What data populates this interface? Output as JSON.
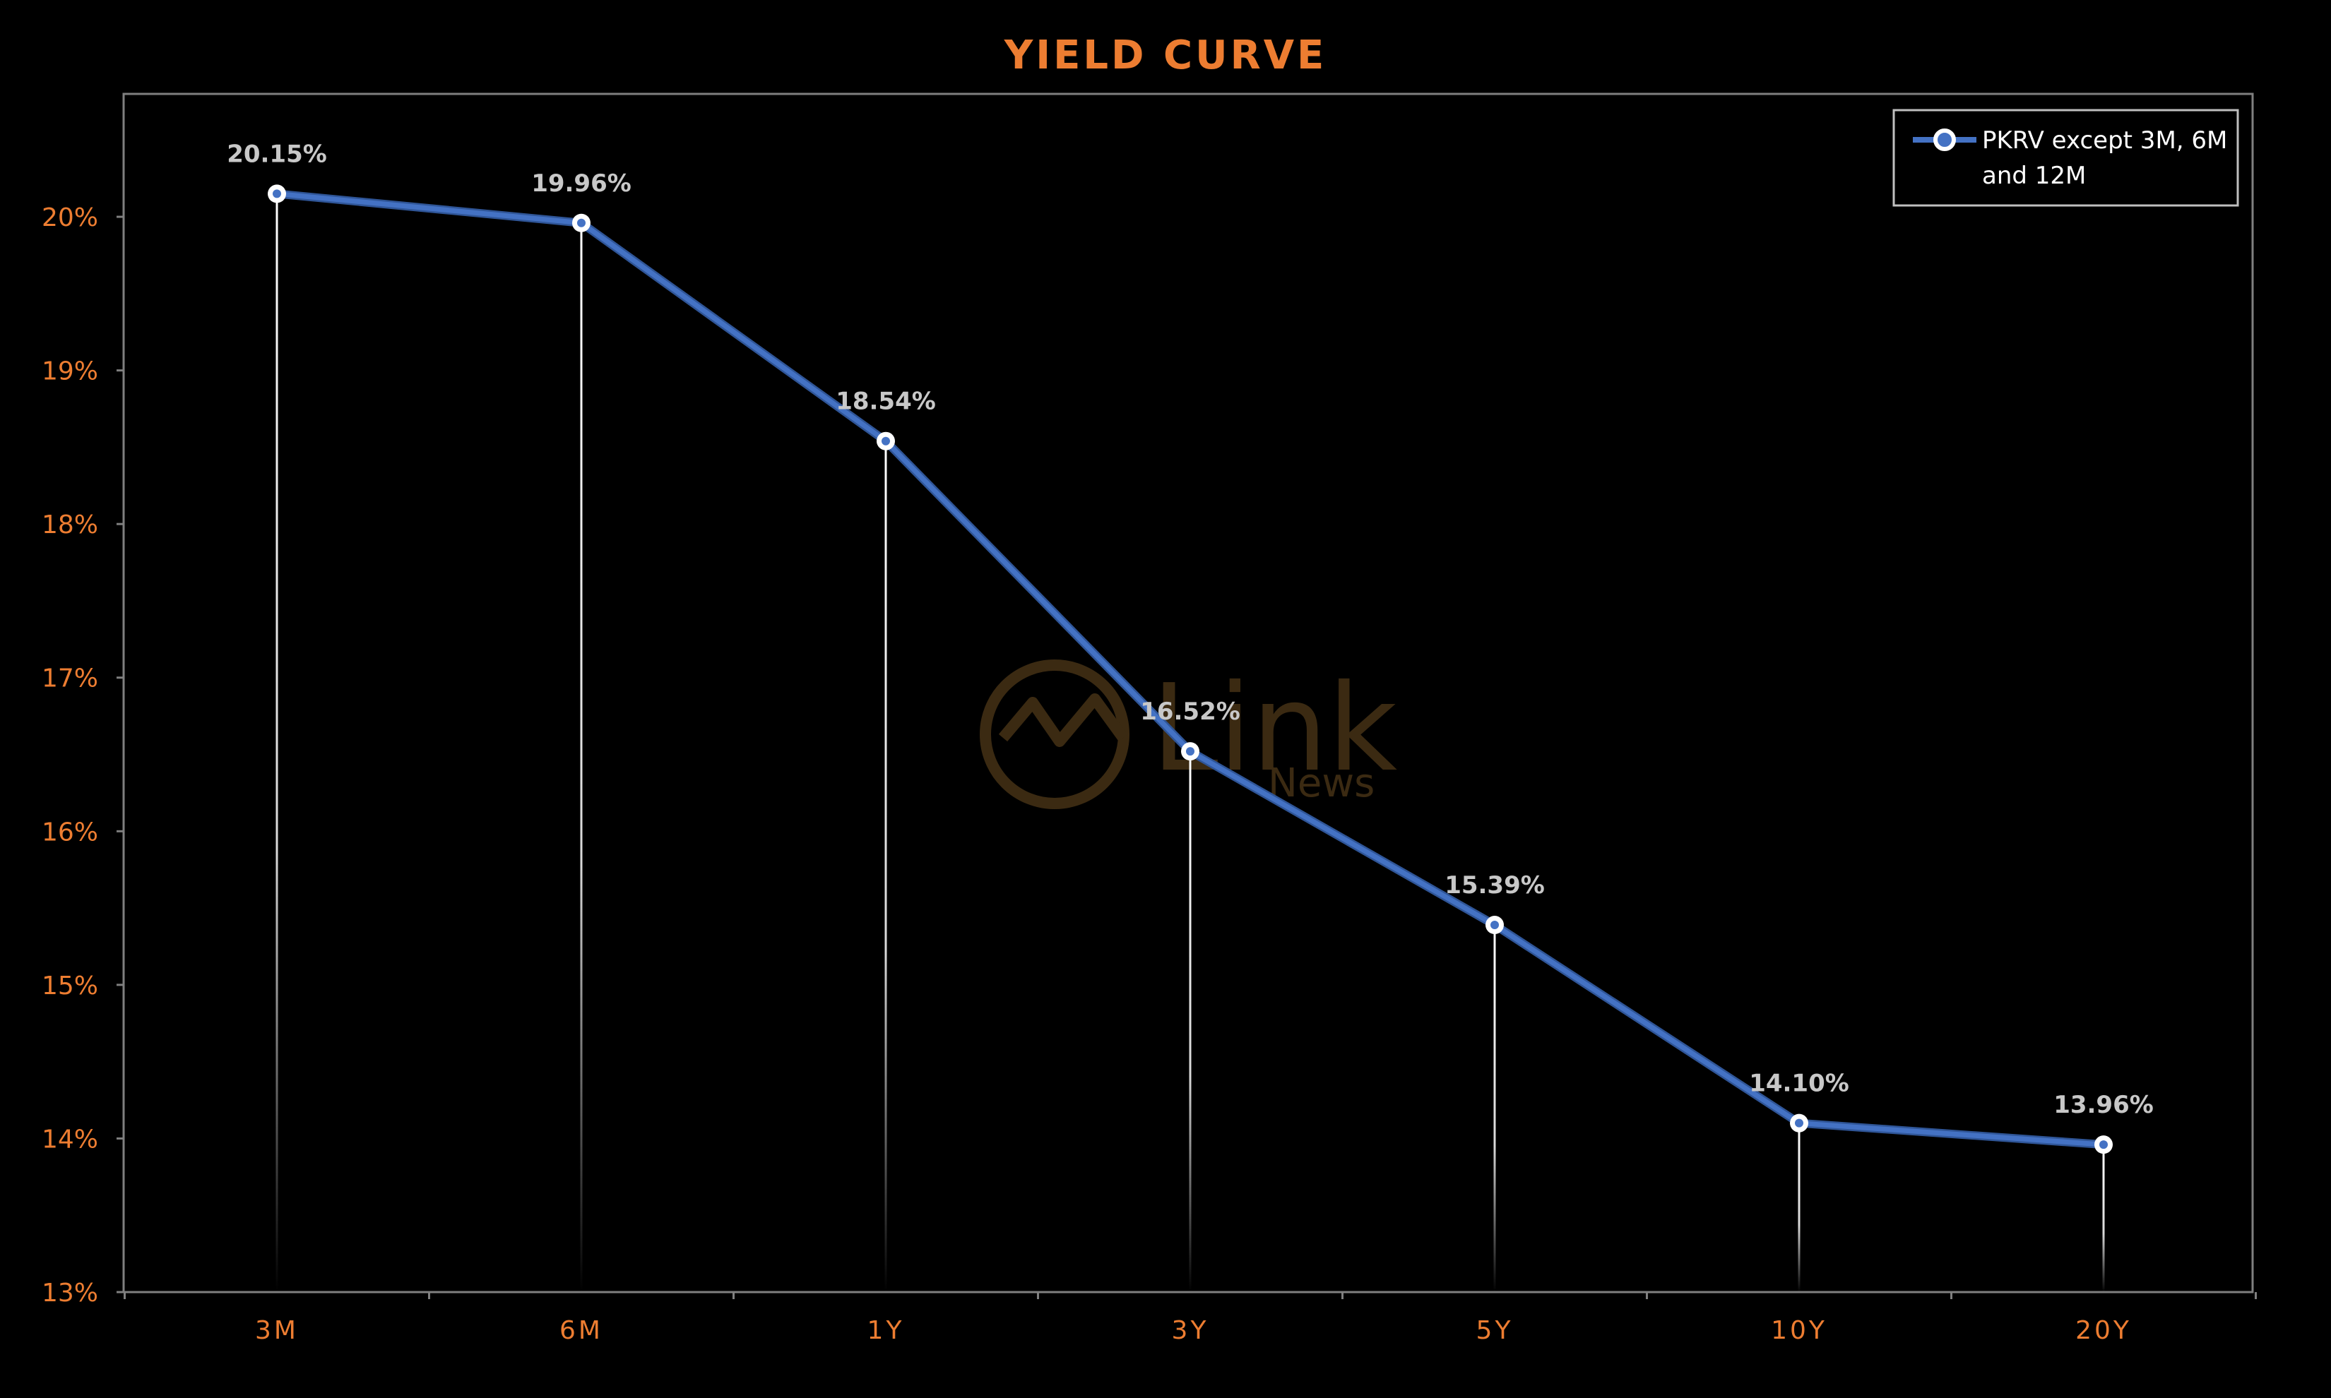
{
  "chart_data": {
    "type": "line",
    "title": "YIELD CURVE",
    "xlabel": "",
    "ylabel": "",
    "categories": [
      "3M",
      "6M",
      "1Y",
      "3Y",
      "5Y",
      "10Y",
      "20Y"
    ],
    "series": [
      {
        "name": "PKRV except 3M, 6M and 12M",
        "values": [
          20.15,
          19.96,
          18.54,
          16.52,
          15.39,
          14.1,
          13.96
        ],
        "data_labels": [
          "20.15%",
          "19.96%",
          "18.54%",
          "16.52%",
          "15.39%",
          "14.10%",
          "13.96%"
        ],
        "color": "#4472C4"
      }
    ],
    "ylim": [
      13,
      20.8
    ],
    "yticks": [
      13,
      14,
      15,
      16,
      17,
      18,
      19,
      20
    ],
    "ytick_labels": [
      "13%",
      "14%",
      "15%",
      "16%",
      "17%",
      "18%",
      "19%",
      "20%"
    ],
    "grid": false,
    "drop_lines": true,
    "legend": {
      "position": "top-right",
      "lines": [
        "PKRV except 3M, 6M",
        "and 12M"
      ]
    },
    "colors": {
      "background": "#000000",
      "accent": "#ED7D31",
      "series": "#4472C4",
      "data_label": "#C8C8C8",
      "frame": "#7F7F7F"
    }
  },
  "watermark": {
    "brand": "Link",
    "sub": "News",
    "icon": "link-news-logo-icon"
  }
}
